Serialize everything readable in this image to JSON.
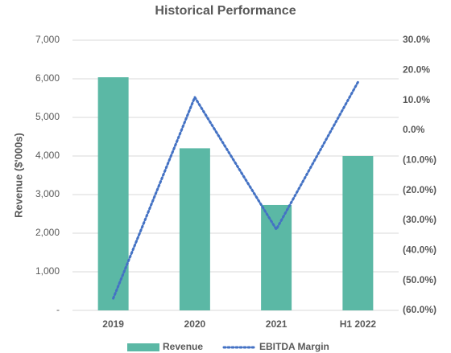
{
  "chart_data": {
    "type": "bar_line",
    "title": "Historical Performance",
    "y_axis_label": "Revenue ($'000s)",
    "categories": [
      "2019",
      "2020",
      "2021",
      "H1 2022"
    ],
    "series": [
      {
        "name": "Revenue",
        "type": "bar",
        "color": "#5bb8a5",
        "values": [
          6040,
          4200,
          2730,
          4000
        ]
      },
      {
        "name": "EBITDA Margin",
        "type": "line",
        "axis": "y2",
        "color": "#4472c4",
        "values": [
          -56,
          11,
          -33,
          16
        ]
      }
    ],
    "ylim": [
      0,
      7000
    ],
    "yticks": [
      {
        "value": 0,
        "label": "-"
      },
      {
        "value": 1000,
        "label": "1,000"
      },
      {
        "value": 2000,
        "label": "2,000"
      },
      {
        "value": 3000,
        "label": "3,000"
      },
      {
        "value": 4000,
        "label": "4,000"
      },
      {
        "value": 5000,
        "label": "5,000"
      },
      {
        "value": 6000,
        "label": "6,000"
      },
      {
        "value": 7000,
        "label": "7,000"
      }
    ],
    "y2lim": [
      -60,
      30
    ],
    "y2ticks": [
      {
        "value": -60,
        "label": "(60.0%)"
      },
      {
        "value": -50,
        "label": "(50.0%)"
      },
      {
        "value": -40,
        "label": "(40.0%)"
      },
      {
        "value": -30,
        "label": "(30.0%)"
      },
      {
        "value": -20,
        "label": "(20.0%)"
      },
      {
        "value": -10,
        "label": "(10.0%)"
      },
      {
        "value": 0,
        "label": "0.0%"
      },
      {
        "value": 10,
        "label": "10.0%"
      },
      {
        "value": 20,
        "label": "20.0%"
      },
      {
        "value": 30,
        "label": "30.0%"
      }
    ],
    "grid": true,
    "legend": "bottom"
  }
}
